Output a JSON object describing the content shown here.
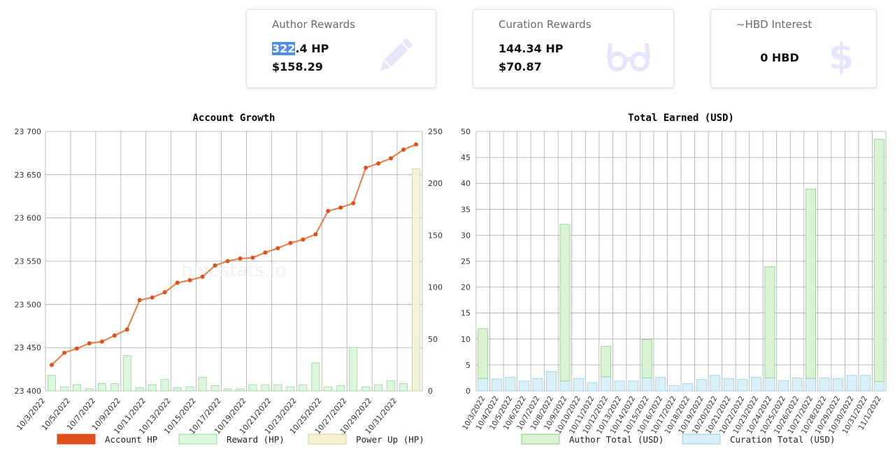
{
  "cards": {
    "author": {
      "title": "Author Rewards",
      "hp_selected": "322",
      "hp_rest": ".4 HP",
      "usd": "$158.29",
      "icon": "pencil-icon"
    },
    "curation": {
      "title": "Curation Rewards",
      "hp": "144.34 HP",
      "usd": "$70.87",
      "icon": "glasses-icon"
    },
    "interest": {
      "title": "~HBD Interest",
      "value": "0 HBD",
      "icon": "dollar-icon"
    }
  },
  "colors": {
    "account_hp": "#e0501e",
    "account_hp_line": "#e8834e",
    "reward_fill": "#dcf7dd",
    "reward_stroke": "#9ad39f",
    "powerup_fill": "#f6f1d3",
    "powerup_stroke": "#d8cf9a",
    "author_fill": "#d8f2d2",
    "author_stroke": "#8cc98a",
    "curation_fill": "#daf0f9",
    "curation_stroke": "#9bcde3",
    "grid": "#aaaaaa"
  },
  "watermark": "hivestats.io",
  "chart_data": [
    {
      "type": "bar",
      "title": "Account Growth",
      "categories": [
        "10/3/2022",
        "10/4/2022",
        "10/5/2022",
        "10/6/2022",
        "10/7/2022",
        "10/8/2022",
        "10/9/2022",
        "10/10/2022",
        "10/11/2022",
        "10/12/2022",
        "10/13/2022",
        "10/14/2022",
        "10/15/2022",
        "10/16/2022",
        "10/17/2022",
        "10/18/2022",
        "10/19/2022",
        "10/20/2022",
        "10/21/2022",
        "10/22/2022",
        "10/23/2022",
        "10/24/2022",
        "10/25/2022",
        "10/26/2022",
        "10/27/2022",
        "10/28/2022",
        "10/29/2022",
        "10/30/2022",
        "10/31/2022",
        "11/1/2022"
      ],
      "xticks": [
        "10/3/2022",
        "10/5/2022",
        "10/7/2022",
        "10/9/2022",
        "10/11/2022",
        "10/13/2022",
        "10/15/2022",
        "10/17/2022",
        "10/19/2022",
        "10/21/2022",
        "10/23/2022",
        "10/25/2022",
        "10/27/2022",
        "10/29/2022",
        "10/31/2022"
      ],
      "y_left": {
        "range": [
          23400,
          23700
        ],
        "ticks": [
          23400,
          23450,
          23500,
          23550,
          23600,
          23650,
          23700
        ],
        "tick_labels": [
          "23 400",
          "23 450",
          "23 500",
          "23 550",
          "23 600",
          "23 650",
          "23 700"
        ]
      },
      "y_right": {
        "range": [
          0,
          250
        ],
        "ticks": [
          0,
          50,
          100,
          150,
          200,
          250
        ]
      },
      "series": [
        {
          "name": "Account HP",
          "axis": "left",
          "render": "line",
          "values": [
            23430,
            23444,
            23449,
            23455,
            23457,
            23464,
            23471,
            23505,
            23508,
            23514,
            23525,
            23528,
            23532,
            23545,
            23550,
            23553,
            23554,
            23560,
            23565,
            23571,
            23575,
            23581,
            23608,
            23612,
            23617,
            23658,
            23663,
            23669,
            23679,
            23685
          ]
        },
        {
          "name": "Reward (HP)",
          "axis": "right",
          "render": "bar",
          "values": [
            15,
            4,
            6,
            2,
            7,
            7,
            34,
            3,
            6,
            11,
            3,
            4,
            13,
            5,
            2,
            2,
            6,
            6,
            6,
            4,
            6,
            27,
            4,
            5,
            42,
            4,
            6,
            10,
            7,
            51
          ]
        },
        {
          "name": "Power Up (HP)",
          "axis": "right",
          "render": "bar",
          "values": [
            0,
            0,
            0,
            0,
            0,
            0,
            0,
            0,
            0,
            0,
            0,
            0,
            0,
            0,
            0,
            0,
            0,
            0,
            0,
            0,
            0,
            0,
            0,
            0,
            0,
            0,
            0,
            0,
            0,
            214
          ]
        }
      ],
      "grid": true,
      "legend": "bottom"
    },
    {
      "type": "bar",
      "stacked": true,
      "title": "Total Earned (USD)",
      "categories": [
        "10/3/2022",
        "10/4/2022",
        "10/5/2022",
        "10/6/2022",
        "10/7/2022",
        "10/8/2022",
        "10/9/2022",
        "10/10/2022",
        "10/11/2022",
        "10/12/2022",
        "10/13/2022",
        "10/14/2022",
        "10/15/2022",
        "10/16/2022",
        "10/17/2022",
        "10/18/2022",
        "10/19/2022",
        "10/20/2022",
        "10/21/2022",
        "10/22/2022",
        "10/23/2022",
        "10/24/2022",
        "10/25/2022",
        "10/26/2022",
        "10/27/2022",
        "10/28/2022",
        "10/29/2022",
        "10/30/2022",
        "10/31/2022",
        "11/1/2022"
      ],
      "ylim": [
        0,
        50
      ],
      "yticks": [
        0,
        5,
        10,
        15,
        20,
        25,
        30,
        35,
        40,
        45,
        50
      ],
      "series": [
        {
          "name": "Author Total (USD)",
          "values": [
            9.6,
            0,
            0,
            0,
            0,
            0,
            30.2,
            0,
            0,
            5.9,
            0,
            0,
            7.4,
            0,
            0,
            0,
            0,
            0,
            0,
            0,
            0,
            21.4,
            0,
            0,
            36.5,
            0,
            0,
            0,
            0,
            46.7
          ]
        },
        {
          "name": "Curation Total (USD)",
          "values": [
            2.4,
            2.3,
            2.6,
            1.9,
            2.4,
            3.7,
            1.9,
            2.4,
            1.6,
            2.7,
            1.9,
            1.9,
            2.5,
            2.6,
            1.0,
            1.4,
            2.2,
            3.0,
            2.4,
            2.2,
            2.6,
            2.5,
            2.0,
            2.5,
            2.4,
            2.5,
            2.4,
            3.0,
            3.0,
            1.8
          ]
        }
      ],
      "grid": true,
      "legend": "bottom"
    }
  ]
}
